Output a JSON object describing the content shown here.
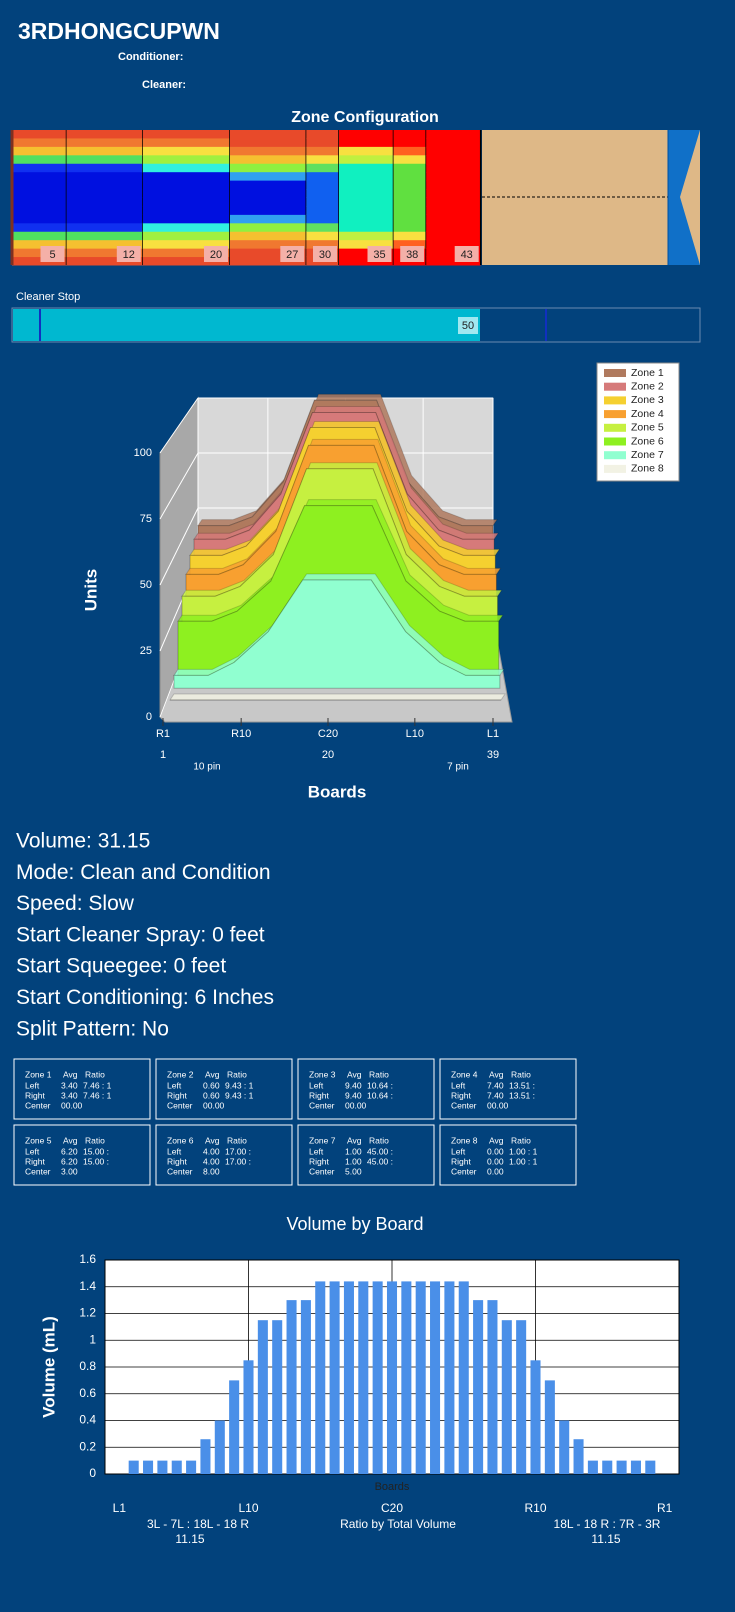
{
  "header": {
    "title": "3RDHONGCUPWN",
    "conditioner": "Conditioner:",
    "cleaner": "Cleaner:"
  },
  "zone_configuration": {
    "title": "Zone Configuration",
    "zone_ends": [
      5,
      12,
      20,
      27,
      30,
      35,
      38,
      43
    ]
  },
  "cleaner_stop": {
    "label": "Cleaner Stop",
    "value": 50
  },
  "chart_data": [
    {
      "type": "area3d",
      "ylabel": "Units",
      "xlabel": "Boards",
      "x": [
        1,
        5,
        8,
        12,
        16,
        20,
        24,
        28,
        32,
        35,
        39
      ],
      "series": [
        {
          "name": "Zone 1",
          "color": "#b07a5e",
          "values": [
            42,
            42,
            46,
            62,
            99,
            99,
            99,
            62,
            46,
            42,
            42
          ]
        },
        {
          "name": "Zone 2",
          "color": "#d67a7a",
          "values": [
            40,
            40,
            44,
            60,
            96,
            96,
            96,
            60,
            44,
            40,
            40
          ]
        },
        {
          "name": "Zone 3",
          "color": "#f5d030",
          "values": [
            37,
            37,
            41,
            56,
            92,
            92,
            92,
            56,
            41,
            37,
            37
          ]
        },
        {
          "name": "Zone 4",
          "color": "#f8a030",
          "values": [
            33,
            33,
            37,
            51,
            87,
            87,
            87,
            51,
            37,
            33,
            33
          ]
        },
        {
          "name": "Zone 5",
          "color": "#c6f040",
          "values": [
            28,
            28,
            32,
            45,
            80,
            80,
            80,
            45,
            32,
            28,
            28
          ]
        },
        {
          "name": "Zone 6",
          "color": "#8ef020",
          "values": [
            22,
            22,
            26,
            38,
            68,
            68,
            68,
            38,
            26,
            22,
            22
          ]
        },
        {
          "name": "Zone 7",
          "color": "#90ffd0",
          "values": [
            5,
            5,
            10,
            22,
            42,
            42,
            42,
            22,
            10,
            5,
            5
          ]
        },
        {
          "name": "Zone 8",
          "color": "#f2f2e4",
          "values": [
            0,
            0,
            0,
            0,
            0,
            0,
            0,
            0,
            0,
            0,
            0
          ]
        }
      ],
      "xlim": [
        1,
        39
      ],
      "xticks": [
        {
          "value": 1,
          "label": "R1"
        },
        {
          "value": 10,
          "label": "R10"
        },
        {
          "value": 20,
          "label": "C20"
        },
        {
          "value": 30,
          "label": "L10"
        },
        {
          "value": 39,
          "label": "L1"
        }
      ],
      "board_numbers": [
        1,
        20,
        39
      ],
      "pin_labels": [
        "10 pin",
        "7 pin"
      ],
      "ylim": [
        0,
        100
      ],
      "yticks": [
        0,
        25,
        50,
        75,
        100
      ],
      "grid": true,
      "legend": "top-right"
    },
    {
      "type": "bar",
      "title": "Volume by Board",
      "ylabel": "Volume (mL)",
      "xlabel": "Boards",
      "x": [
        1,
        2,
        3,
        4,
        5,
        6,
        7,
        8,
        9,
        10,
        11,
        12,
        13,
        14,
        15,
        16,
        17,
        18,
        19,
        20,
        21,
        22,
        23,
        24,
        25,
        26,
        27,
        28,
        29,
        30,
        31,
        32,
        33,
        34,
        35,
        36,
        37,
        38,
        39
      ],
      "values": [
        0,
        0.1,
        0.1,
        0.1,
        0.1,
        0.1,
        0.26,
        0.4,
        0.7,
        0.85,
        1.15,
        1.15,
        1.3,
        1.3,
        1.44,
        1.44,
        1.44,
        1.44,
        1.44,
        1.44,
        1.44,
        1.44,
        1.44,
        1.44,
        1.44,
        1.3,
        1.3,
        1.15,
        1.15,
        0.85,
        0.7,
        0.4,
        0.26,
        0.1,
        0.1,
        0.1,
        0.1,
        0.1,
        0
      ],
      "color": "#4a8fe8",
      "xlim": [
        0,
        40
      ],
      "xticks": [
        {
          "value": 1,
          "label": "L1"
        },
        {
          "value": 10,
          "label": "L10"
        },
        {
          "value": 20,
          "label": "C20"
        },
        {
          "value": 30,
          "label": "R10"
        },
        {
          "value": 39,
          "label": "R1"
        }
      ],
      "ylim": [
        0,
        1.6
      ],
      "yticks": [
        0,
        0.2,
        0.4,
        0.6,
        0.8,
        1,
        1.2,
        1.4,
        1.6
      ],
      "grid": true,
      "annotations": [
        "3L - 7L : 18L - 18 R",
        "11.15",
        "Ratio by Total Volume",
        "18L - 18 R : 7R - 3R",
        "11.15"
      ]
    }
  ],
  "info": [
    "Volume: 31.15",
    "Mode: Clean and Condition",
    "Speed: Slow",
    "Start Cleaner Spray: 0 feet",
    "Start Squeegee: 0 feet",
    "Start Conditioning: 6 Inches",
    "Split Pattern: No"
  ],
  "zone_tables": [
    {
      "header": [
        "Zone 1",
        "Avg",
        "Ratio"
      ],
      "rows": [
        [
          "Left",
          "3.40",
          "7.46 : 1"
        ],
        [
          "Right",
          "3.40",
          "7.46 : 1"
        ],
        [
          "Center",
          "00.00"
        ]
      ]
    },
    {
      "header": [
        "Zone 2",
        "Avg",
        "Ratio"
      ],
      "rows": [
        [
          "Left",
          "0.60",
          "9.43 : 1"
        ],
        [
          "Right",
          "0.60",
          "9.43 : 1"
        ],
        [
          "Center",
          "00.00"
        ]
      ]
    },
    {
      "header": [
        "Zone 3",
        "Avg",
        "Ratio"
      ],
      "rows": [
        [
          "Left",
          "9.40",
          "10.64 :"
        ],
        [
          "Right",
          "9.40",
          "10.64 :"
        ],
        [
          "Center",
          "00.00"
        ]
      ]
    },
    {
      "header": [
        "Zone 4",
        "Avg",
        "Ratio"
      ],
      "rows": [
        [
          "Left",
          "7.40",
          "13.51 :"
        ],
        [
          "Right",
          "7.40",
          "13.51 :"
        ],
        [
          "Center",
          "00.00"
        ]
      ]
    },
    {
      "header": [
        "Zone 5",
        "Avg",
        "Ratio"
      ],
      "rows": [
        [
          "Left",
          "6.20",
          "15.00 :"
        ],
        [
          "Right",
          "6.20",
          "15.00 :"
        ],
        [
          "Center",
          "3.00"
        ]
      ]
    },
    {
      "header": [
        "Zone 6",
        "Avg",
        "Ratio"
      ],
      "rows": [
        [
          "Left",
          "4.00",
          "17.00 :"
        ],
        [
          "Right",
          "4.00",
          "17.00 :"
        ],
        [
          "Center",
          "8.00"
        ]
      ]
    },
    {
      "header": [
        "Zone 7",
        "Avg",
        "Ratio"
      ],
      "rows": [
        [
          "Left",
          "1.00",
          "45.00 :"
        ],
        [
          "Right",
          "1.00",
          "45.00 :"
        ],
        [
          "Center",
          "5.00"
        ]
      ]
    },
    {
      "header": [
        "Zone 8",
        "Avg",
        "Ratio"
      ],
      "rows": [
        [
          "Left",
          "0.00",
          "1.00 : 1"
        ],
        [
          "Right",
          "0.00",
          "1.00 : 1"
        ],
        [
          "Center",
          "0.00"
        ]
      ]
    }
  ]
}
